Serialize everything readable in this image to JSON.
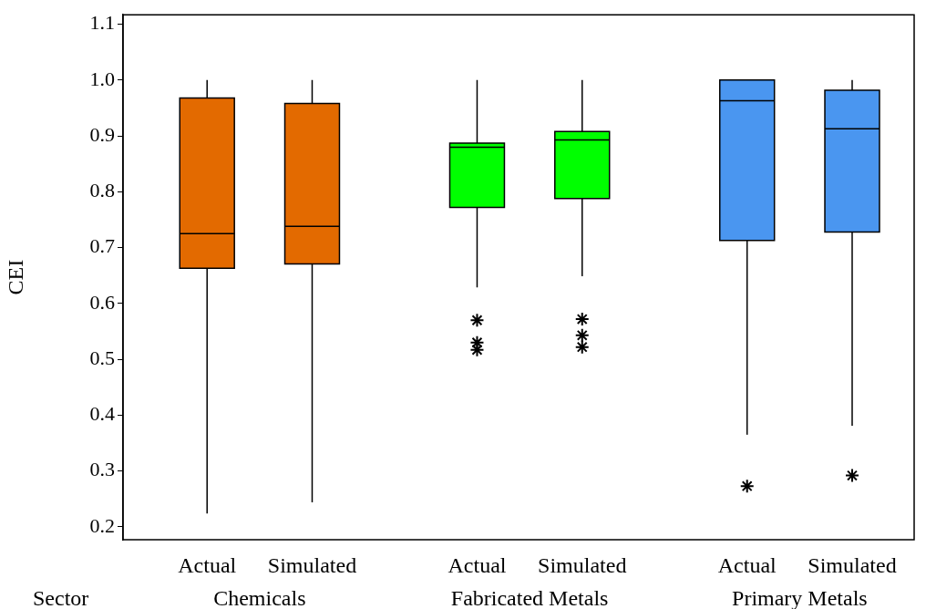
{
  "chart_data": {
    "type": "box",
    "ylabel": "CEI",
    "xlabel": "Sector",
    "categories": [
      "Actual",
      "Simulated",
      "Actual",
      "Simulated",
      "Actual",
      "Simulated"
    ],
    "annotations": [
      "Chemicals",
      "Fabricated Metals",
      "Primary Metals"
    ],
    "colors": [
      "#e36a00",
      "#e36a00",
      "#00ff00",
      "#00ff00",
      "#4a96f0",
      "#4a96f0"
    ],
    "boxes": [
      {
        "low": 0.224,
        "q1": 0.663,
        "median": 0.725,
        "q3": 0.968,
        "high": 1.0
      },
      {
        "low": 0.244,
        "q1": 0.671,
        "median": 0.738,
        "q3": 0.958,
        "high": 1.0
      },
      {
        "low": 0.629,
        "q1": 0.772,
        "median": 0.88,
        "q3": 0.887,
        "high": 1.0,
        "outliers": [
          0.57,
          0.53,
          0.517
        ]
      },
      {
        "low": 0.649,
        "q1": 0.788,
        "median": 0.893,
        "q3": 0.908,
        "high": 1.0,
        "outliers": [
          0.572,
          0.543,
          0.522
        ]
      },
      {
        "low": 0.365,
        "q1": 0.713,
        "median": 0.963,
        "q3": 1.0,
        "high": 1.0,
        "outliers": [
          0.273
        ]
      },
      {
        "low": 0.381,
        "q1": 0.728,
        "median": 0.913,
        "q3": 0.982,
        "high": 1.0,
        "outliers": [
          0.292
        ]
      }
    ],
    "marker": "star",
    "ylim": [
      0.177,
      1.117
    ],
    "yticks": [
      {
        "value": 0.2,
        "label": "0.2"
      },
      {
        "value": 0.3,
        "label": "0.3"
      },
      {
        "value": 0.4,
        "label": "0.4"
      },
      {
        "value": 0.5,
        "label": "0.5"
      },
      {
        "value": 0.6,
        "label": "0.6"
      },
      {
        "value": 0.7,
        "label": "0.7"
      },
      {
        "value": 0.8,
        "label": "0.8"
      },
      {
        "value": 0.9,
        "label": "0.9"
      },
      {
        "value": 1.0,
        "label": "1.0"
      },
      {
        "value": 1.1,
        "label": "1.1"
      }
    ]
  }
}
